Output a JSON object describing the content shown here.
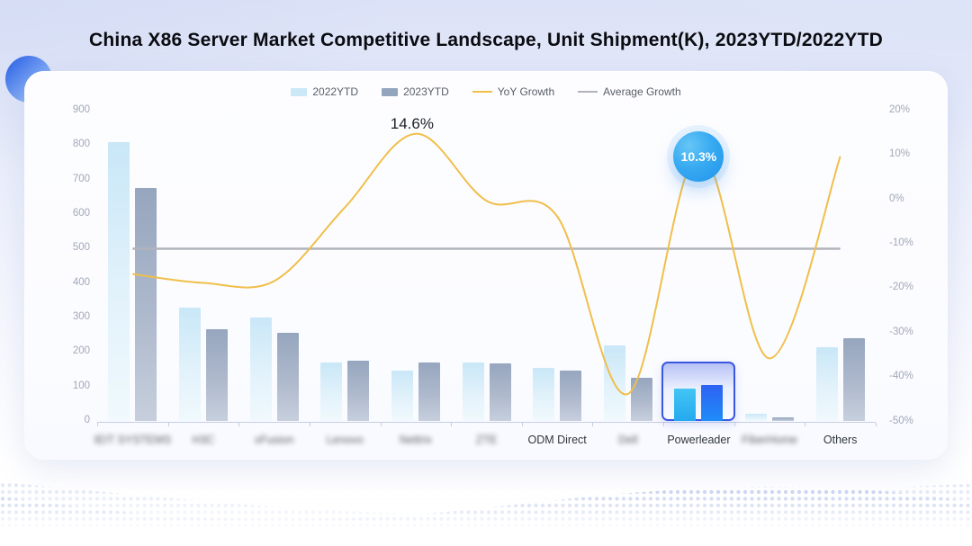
{
  "title": "China X86 Server Market Competitive Landscape, Unit Shipment(K), 2023YTD/2022YTD",
  "legend": [
    {
      "label": "2022YTD",
      "marker": "swatch",
      "color": "#cbe8f7"
    },
    {
      "label": "2023YTD",
      "marker": "swatch",
      "color": "#93a4bd"
    },
    {
      "label": "YoY Growth",
      "marker": "line",
      "color": "#f0bf4a"
    },
    {
      "label": "Average Growth",
      "marker": "line",
      "color": "#b1b4bb"
    }
  ],
  "chart_data": {
    "type": "bar",
    "subtype": "grouped bars with overlaid smooth line (dual axis)",
    "categories": [
      "IEIT SYSTEMS",
      "H3C",
      "xFusion",
      "Lenovo",
      "Nettrix",
      "ZTE",
      "ODM Direct",
      "Dell",
      "Powerleader",
      "FiberHome",
      "Others"
    ],
    "category_blurred": [
      true,
      true,
      true,
      true,
      true,
      true,
      false,
      true,
      false,
      true,
      false
    ],
    "series": [
      {
        "name": "2022YTD",
        "type": "bar",
        "axis": "left",
        "values": [
          810,
          330,
          300,
          170,
          145,
          170,
          155,
          220,
          95,
          20,
          215
        ]
      },
      {
        "name": "2023YTD",
        "type": "bar",
        "axis": "left",
        "values": [
          675,
          265,
          255,
          175,
          170,
          168,
          145,
          125,
          105,
          10,
          240
        ]
      },
      {
        "name": "YoY Growth",
        "type": "line",
        "axis": "right",
        "values_pct": [
          -17,
          -19,
          -18.6,
          -2,
          14.6,
          -0.5,
          -4,
          -44,
          10.3,
          -36,
          9.5
        ]
      },
      {
        "name": "Average Growth",
        "type": "line",
        "axis": "right",
        "constant_pct": -11.3
      }
    ],
    "left_axis": {
      "min": 0,
      "max": 900,
      "step": 100,
      "label_suffix": ""
    },
    "right_axis": {
      "min": -50,
      "max": 20,
      "step": 10,
      "label_suffix": "%"
    },
    "annotations": [
      {
        "text": "14.6%",
        "category": "Nettrix",
        "style": "text-peak"
      },
      {
        "text": "10.3%",
        "category": "Powerleader",
        "style": "bubble"
      }
    ],
    "highlight": {
      "category": "Powerleader"
    },
    "grid": false,
    "legend_position": "top-center"
  },
  "colors": {
    "bar_2022": "#cbe8f7",
    "bar_2023": "#96a6be",
    "bar_2022_highlight": "#35bdf3",
    "bar_2023_highlight": "#2a6ff6",
    "yoy_line": "#f0bf4a",
    "avg_line": "#b1b4bb",
    "highlight_border": "#3a57e0",
    "bubble_fill": "#2d9ff0",
    "axis_text": "#a2a8b8",
    "category_text": "#30353d",
    "title_text": "#0b0c11",
    "wave_dots": "#b7c4ec"
  }
}
